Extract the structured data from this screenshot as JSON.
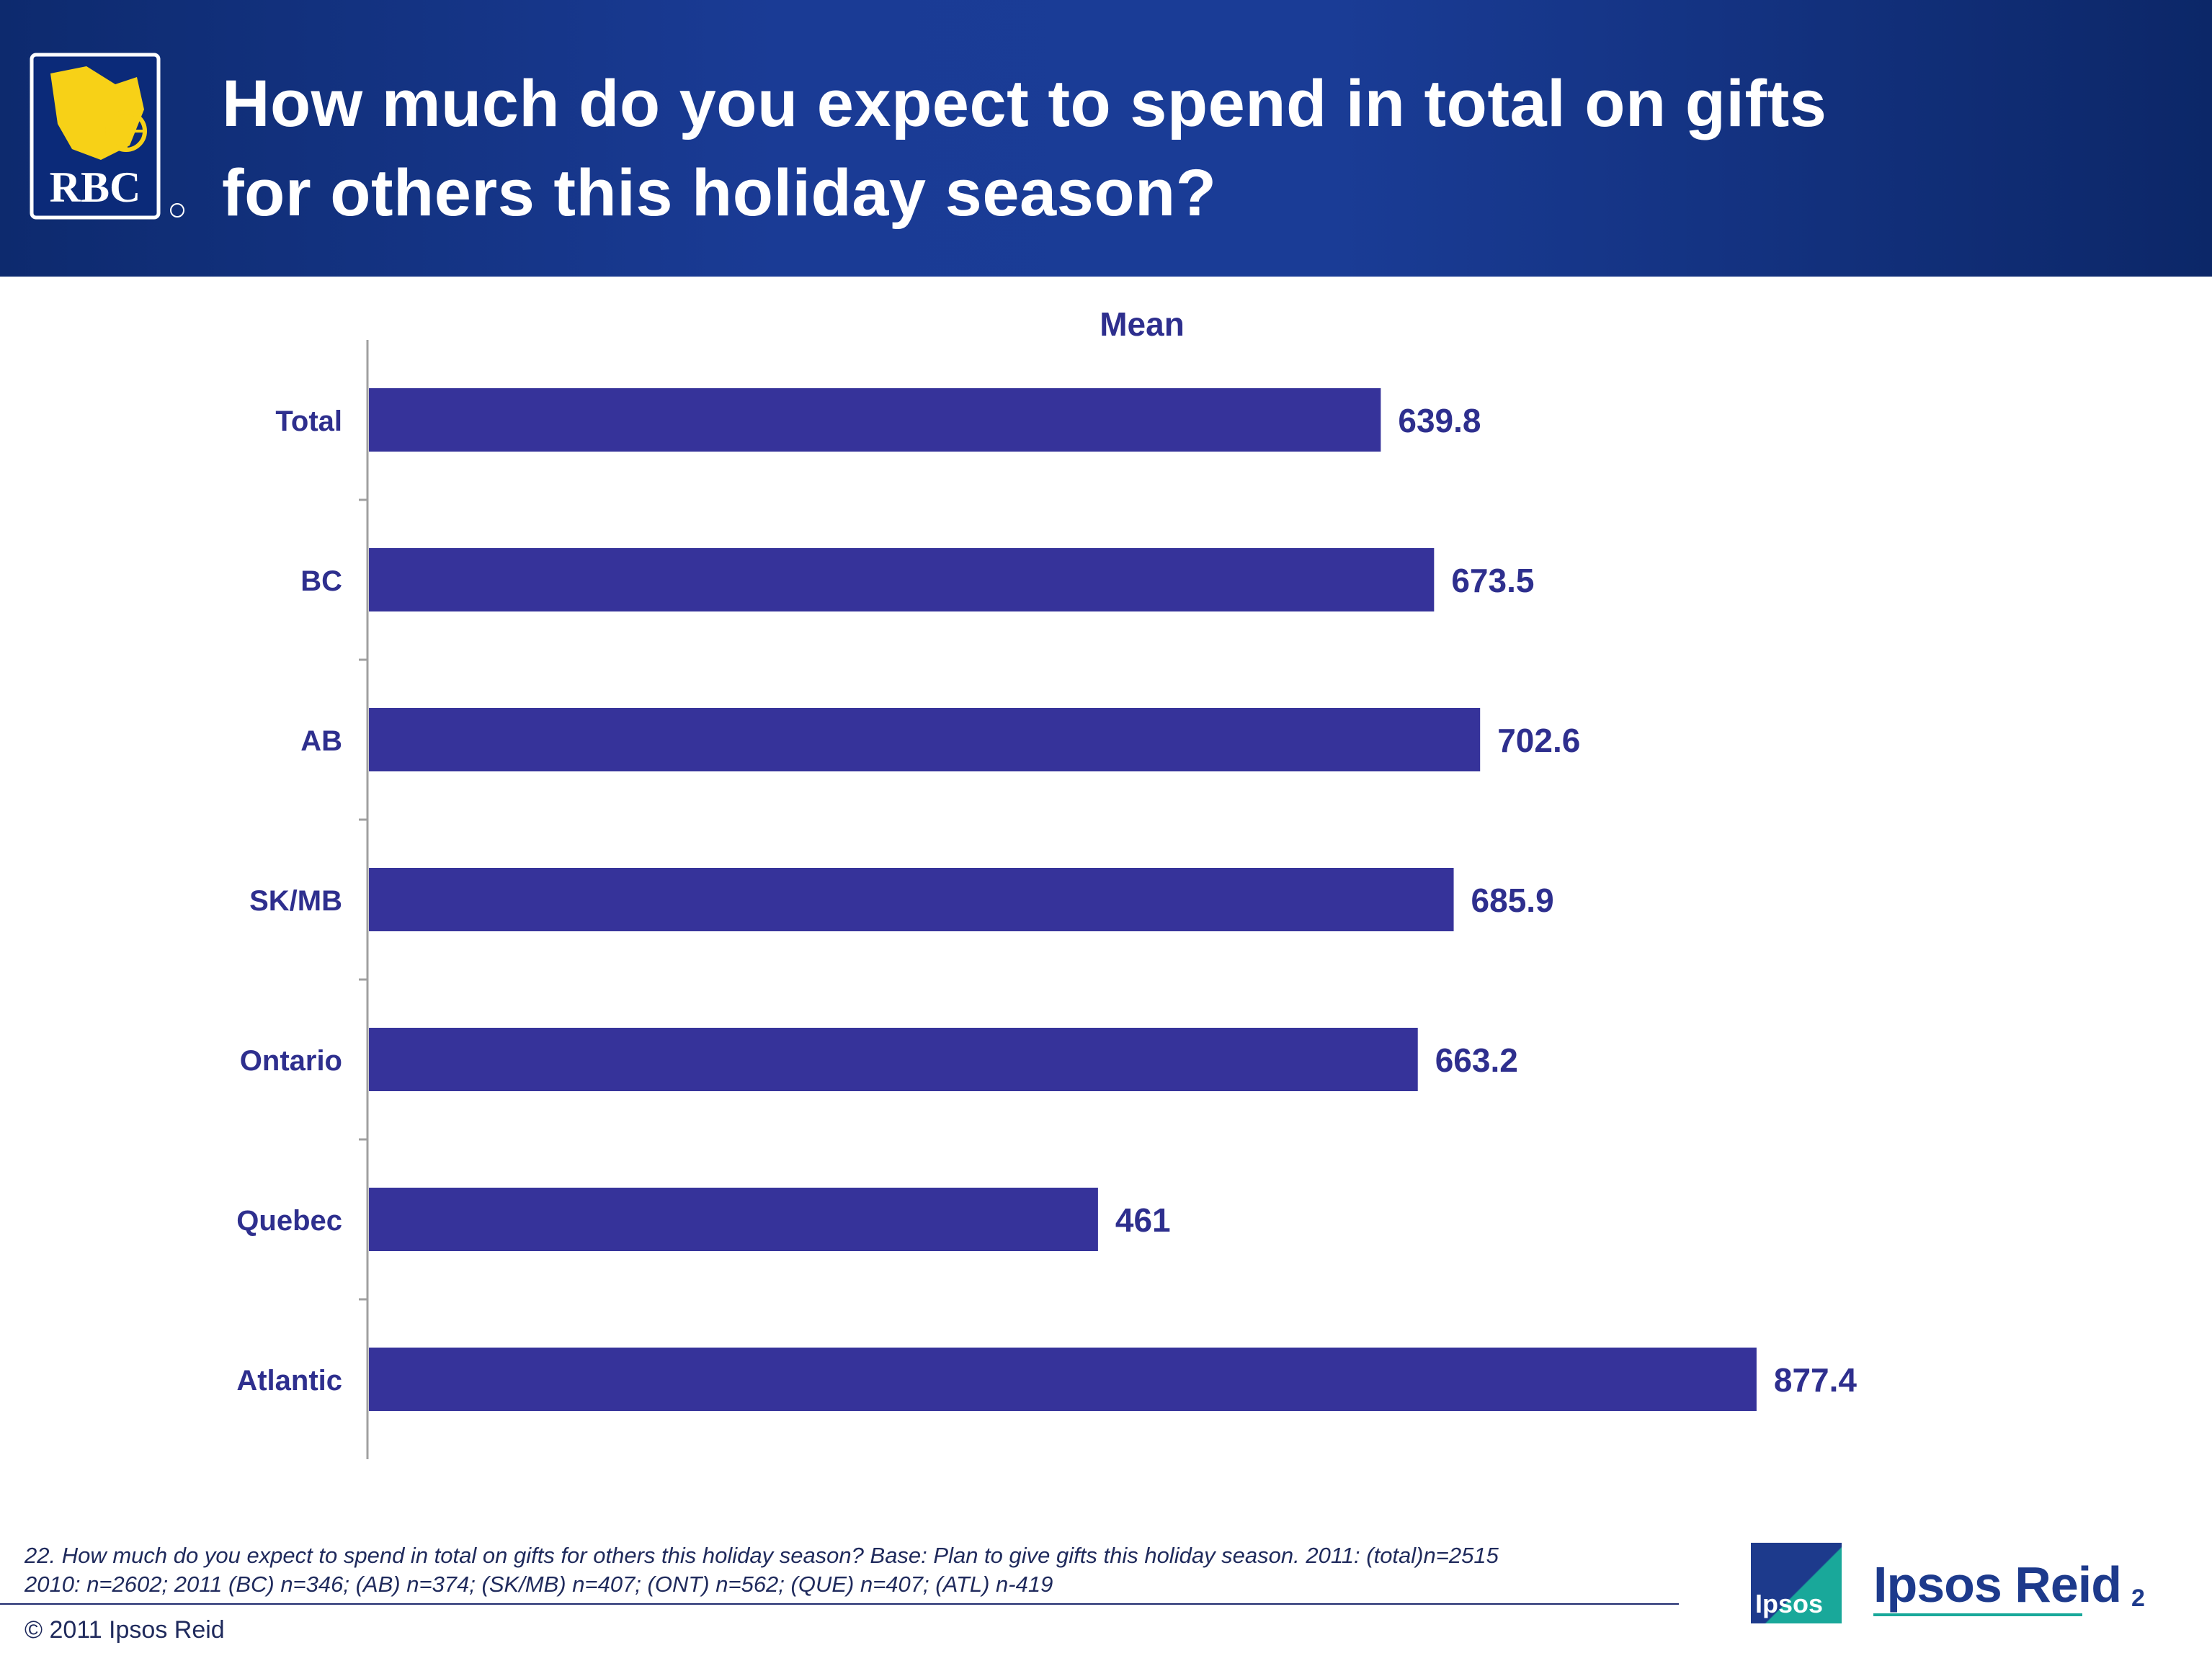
{
  "header": {
    "logo_text": "RBC",
    "title_line1": "How much do you expect to spend in total on gifts",
    "title_line2": "for others this holiday season?"
  },
  "chart_data": {
    "type": "bar",
    "orientation": "horizontal",
    "title": "Mean",
    "categories": [
      "Total",
      "BC",
      "AB",
      "SK/MB",
      "Ontario",
      "Quebec",
      "Atlantic"
    ],
    "values": [
      639.8,
      673.5,
      702.6,
      685.9,
      663.2,
      461,
      877.4
    ],
    "value_labels": [
      "639.8",
      "673.5",
      "702.6",
      "685.9",
      "663.2",
      "461",
      "877.4"
    ],
    "xlim": [
      0,
      1000
    ],
    "grid": false,
    "legend": "none",
    "bar_color": "#36339a",
    "text_color": "#2e2f8e"
  },
  "footer": {
    "footnote_line1": "22. How much do you expect to spend in total on gifts for others this holiday season?  Base: Plan to give gifts this holiday season. 2011: (total)n=2515",
    "footnote_line2": "2010: n=2602; 2011 (BC) n=346; (AB) n=374; (SK/MB) n=407; (ONT) n=562; (QUE) n=407; (ATL) n-419",
    "copyright": "© 2011 Ipsos Reid",
    "ipsos_box_text": "Ipsos",
    "brand": "Ipsos Reid",
    "page_number": "2"
  }
}
